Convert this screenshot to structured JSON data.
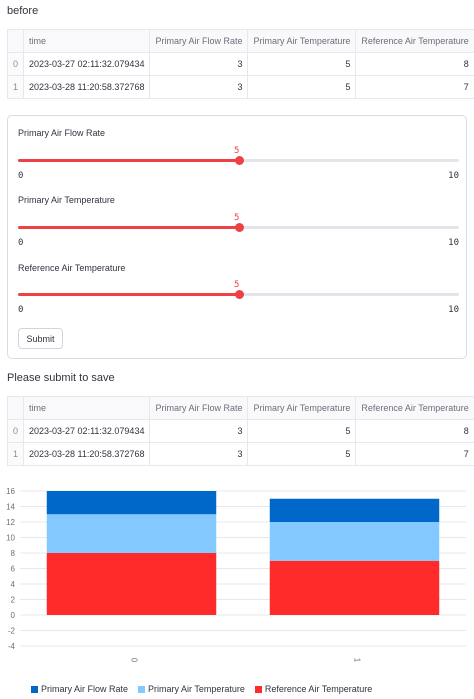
{
  "before_heading": "before",
  "table_columns": [
    "",
    "time",
    "Primary Air Flow Rate",
    "Primary Air Temperature",
    "Reference Air Temperature"
  ],
  "table_before": [
    {
      "index": "0",
      "time": "2023-03-27 02:11:32.079434",
      "flow": "3",
      "ptemp": "5",
      "rtemp": "8"
    },
    {
      "index": "1",
      "time": "2023-03-28 11:20:58.372768",
      "flow": "3",
      "ptemp": "5",
      "rtemp": "7"
    }
  ],
  "form": {
    "sliders": [
      {
        "label": "Primary Air Flow Rate",
        "value": "5",
        "min": "0",
        "max": "10",
        "fraction": 0.5
      },
      {
        "label": "Primary Air Temperature",
        "value": "5",
        "min": "0",
        "max": "10",
        "fraction": 0.5
      },
      {
        "label": "Reference Air Temperature",
        "value": "5",
        "min": "0",
        "max": "10",
        "fraction": 0.5
      }
    ],
    "submit_label": "Submit"
  },
  "save_prompt": "Please submit to save",
  "table_after": [
    {
      "index": "0",
      "time": "2023-03-27 02:11:32.079434",
      "flow": "3",
      "ptemp": "5",
      "rtemp": "8"
    },
    {
      "index": "1",
      "time": "2023-03-28 11:20:58.372768",
      "flow": "3",
      "ptemp": "5",
      "rtemp": "7"
    }
  ],
  "chart_data": {
    "type": "bar",
    "stacked": true,
    "categories": [
      "0",
      "1"
    ],
    "series": [
      {
        "name": "Reference Air Temperature",
        "values": [
          8,
          7
        ],
        "color": "#ff2b2b"
      },
      {
        "name": "Primary Air Temperature",
        "values": [
          5,
          5
        ],
        "color": "#83c9ff"
      },
      {
        "name": "Primary Air Flow Rate",
        "values": [
          3,
          3
        ],
        "color": "#0068c9"
      }
    ],
    "ylim": [
      -4,
      16
    ],
    "yticks": [
      "-4",
      "-2",
      "0",
      "2",
      "4",
      "6",
      "8",
      "10",
      "12",
      "14",
      "16"
    ],
    "grid": true,
    "legend_position": "bottom",
    "legend_order": [
      "Primary Air Flow Rate",
      "Primary Air Temperature",
      "Reference Air Temperature"
    ]
  }
}
